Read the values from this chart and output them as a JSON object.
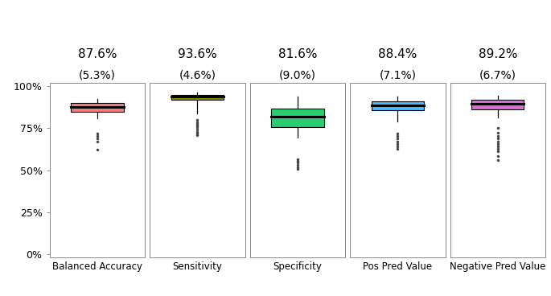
{
  "panels": [
    {
      "label": "Balanced Accuracy",
      "mean_pct": "87.6%",
      "sd_pct": "(5.3%)",
      "color": "#F08080",
      "median": 0.876,
      "q1": 0.848,
      "q3": 0.9,
      "whisker_low": 0.81,
      "whisker_high": 0.922,
      "outliers": [
        0.72,
        0.705,
        0.69,
        0.67,
        0.625
      ]
    },
    {
      "label": "Sensitivity",
      "mean_pct": "93.6%",
      "sd_pct": "(4.6%)",
      "color": "#8B8B00",
      "median": 0.94,
      "q1": 0.92,
      "q3": 0.95,
      "whisker_low": 0.84,
      "whisker_high": 0.965,
      "outliers": [
        0.8,
        0.785,
        0.775,
        0.765,
        0.755,
        0.74,
        0.73,
        0.72,
        0.71
      ]
    },
    {
      "label": "Specificity",
      "mean_pct": "81.6%",
      "sd_pct": "(9.0%)",
      "color": "#2ECC71",
      "median": 0.818,
      "q1": 0.758,
      "q3": 0.868,
      "whisker_low": 0.695,
      "whisker_high": 0.94,
      "outliers": [
        0.565,
        0.555,
        0.545,
        0.53,
        0.515,
        0.508
      ]
    },
    {
      "label": "Pos Pred Value",
      "mean_pct": "88.4%",
      "sd_pct": "(7.1%)",
      "color": "#4DB8FF",
      "median": 0.888,
      "q1": 0.855,
      "q3": 0.912,
      "whisker_low": 0.79,
      "whisker_high": 0.94,
      "outliers": [
        0.72,
        0.705,
        0.69,
        0.672,
        0.658,
        0.642,
        0.628
      ]
    },
    {
      "label": "Negative Pred Value",
      "mean_pct": "89.2%",
      "sd_pct": "(6.7%)",
      "color": "#DA70D6",
      "median": 0.895,
      "q1": 0.862,
      "q3": 0.918,
      "whisker_low": 0.815,
      "whisker_high": 0.942,
      "outliers": [
        0.75,
        0.725,
        0.705,
        0.688,
        0.672,
        0.658,
        0.642,
        0.628,
        0.612,
        0.582,
        0.562
      ]
    }
  ],
  "ylim": [
    -0.02,
    1.02
  ],
  "yticks": [
    0.0,
    0.25,
    0.5,
    0.75,
    1.0
  ],
  "yticklabels": [
    "0%",
    "25%",
    "50%",
    "75%",
    "100%"
  ],
  "background_color": "#FFFFFF",
  "box_width": 0.55,
  "mean_fontsize": 11,
  "sd_fontsize": 10,
  "label_fontsize": 8.5,
  "tick_fontsize": 9
}
